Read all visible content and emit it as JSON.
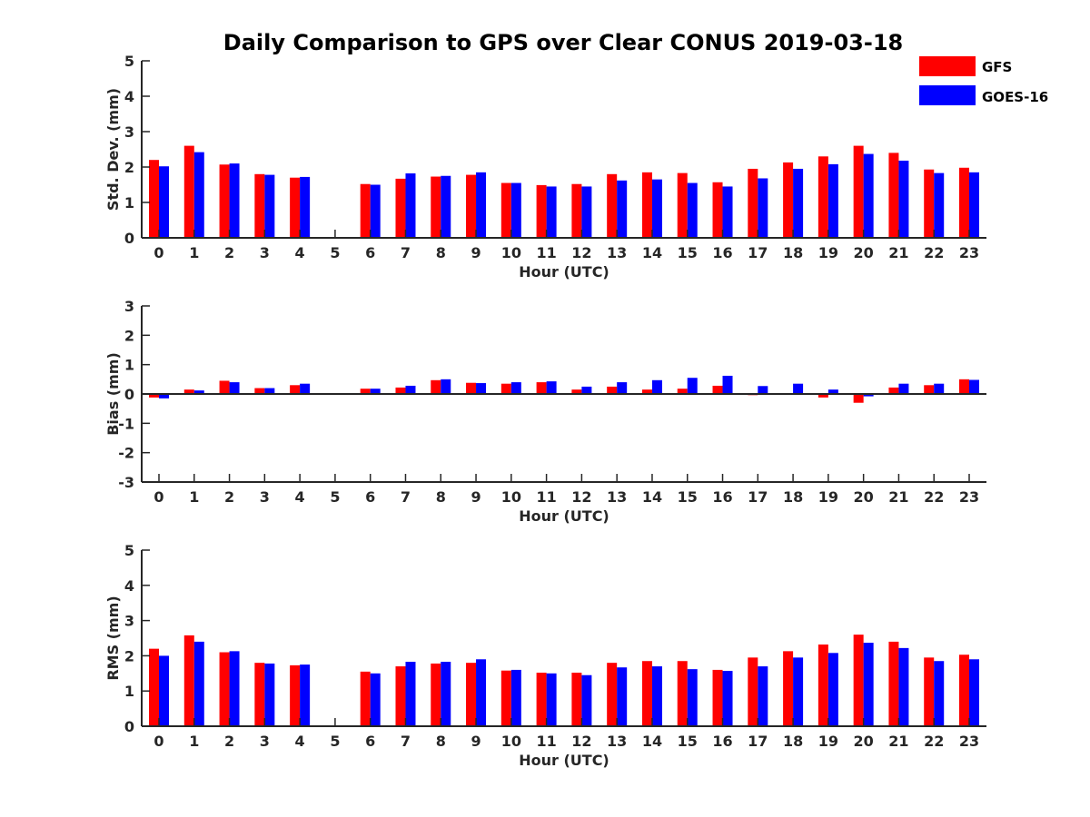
{
  "title": "Daily Comparison to GPS over Clear CONUS 2019-03-18",
  "legend": [
    {
      "name": "GFS",
      "color": "#ff0000"
    },
    {
      "name": "GOES-16",
      "color": "#0000ff"
    }
  ],
  "chart_data": [
    {
      "type": "bar",
      "ylabel": "Std. Dev. (mm)",
      "xlabel": "Hour (UTC)",
      "ylim": [
        0,
        5
      ],
      "yticks": [
        "0",
        "1",
        "2",
        "3",
        "4",
        "5"
      ],
      "categories": [
        "0",
        "1",
        "2",
        "3",
        "4",
        "5",
        "6",
        "7",
        "8",
        "9",
        "10",
        "11",
        "12",
        "13",
        "14",
        "15",
        "16",
        "17",
        "18",
        "19",
        "20",
        "21",
        "22",
        "23"
      ],
      "series": [
        {
          "name": "GFS",
          "color": "#ff0000",
          "values": [
            2.2,
            2.6,
            2.07,
            1.8,
            1.7,
            null,
            1.52,
            1.67,
            1.73,
            1.78,
            1.55,
            1.49,
            1.52,
            1.8,
            1.85,
            1.83,
            1.57,
            1.95,
            2.13,
            2.3,
            2.6,
            2.4,
            1.93,
            1.98
          ]
        },
        {
          "name": "GOES-16",
          "color": "#0000ff",
          "values": [
            2.02,
            2.42,
            2.1,
            1.78,
            1.72,
            null,
            1.5,
            1.82,
            1.75,
            1.85,
            1.55,
            1.45,
            1.45,
            1.62,
            1.65,
            1.55,
            1.45,
            1.68,
            1.95,
            2.08,
            2.37,
            2.18,
            1.83,
            1.85
          ]
        }
      ]
    },
    {
      "type": "bar",
      "ylabel": "Bias (mm)",
      "xlabel": "Hour (UTC)",
      "ylim": [
        -3,
        3
      ],
      "yticks": [
        "-3",
        "-2",
        "-1",
        "0",
        "1",
        "2",
        "3"
      ],
      "categories": [
        "0",
        "1",
        "2",
        "3",
        "4",
        "5",
        "6",
        "7",
        "8",
        "9",
        "10",
        "11",
        "12",
        "13",
        "14",
        "15",
        "16",
        "17",
        "18",
        "19",
        "20",
        "21",
        "22",
        "23"
      ],
      "series": [
        {
          "name": "GFS",
          "color": "#ff0000",
          "values": [
            -0.12,
            0.15,
            0.45,
            0.2,
            0.3,
            null,
            0.18,
            0.22,
            0.47,
            0.38,
            0.35,
            0.4,
            0.15,
            0.25,
            0.15,
            0.18,
            0.28,
            -0.04,
            0.0,
            -0.12,
            -0.3,
            0.22,
            0.3,
            0.5
          ]
        },
        {
          "name": "GOES-16",
          "color": "#0000ff",
          "values": [
            -0.15,
            0.12,
            0.4,
            0.2,
            0.35,
            null,
            0.18,
            0.28,
            0.5,
            0.37,
            0.4,
            0.43,
            0.25,
            0.4,
            0.47,
            0.55,
            0.62,
            0.27,
            0.35,
            0.15,
            -0.08,
            0.35,
            0.35,
            0.48
          ]
        }
      ]
    },
    {
      "type": "bar",
      "ylabel": "RMS (mm)",
      "xlabel": "Hour (UTC)",
      "ylim": [
        0,
        5
      ],
      "yticks": [
        "0",
        "1",
        "2",
        "3",
        "4",
        "5"
      ],
      "categories": [
        "0",
        "1",
        "2",
        "3",
        "4",
        "5",
        "6",
        "7",
        "8",
        "9",
        "10",
        "11",
        "12",
        "13",
        "14",
        "15",
        "16",
        "17",
        "18",
        "19",
        "20",
        "21",
        "22",
        "23"
      ],
      "series": [
        {
          "name": "GFS",
          "color": "#ff0000",
          "values": [
            2.2,
            2.58,
            2.1,
            1.8,
            1.73,
            null,
            1.55,
            1.7,
            1.78,
            1.8,
            1.58,
            1.52,
            1.52,
            1.8,
            1.85,
            1.85,
            1.6,
            1.95,
            2.13,
            2.32,
            2.6,
            2.4,
            1.95,
            2.03
          ]
        },
        {
          "name": "GOES-16",
          "color": "#0000ff",
          "values": [
            2.0,
            2.4,
            2.13,
            1.78,
            1.75,
            null,
            1.5,
            1.83,
            1.83,
            1.9,
            1.6,
            1.5,
            1.45,
            1.67,
            1.7,
            1.62,
            1.57,
            1.7,
            1.95,
            2.08,
            2.37,
            2.22,
            1.85,
            1.9
          ]
        }
      ]
    }
  ]
}
